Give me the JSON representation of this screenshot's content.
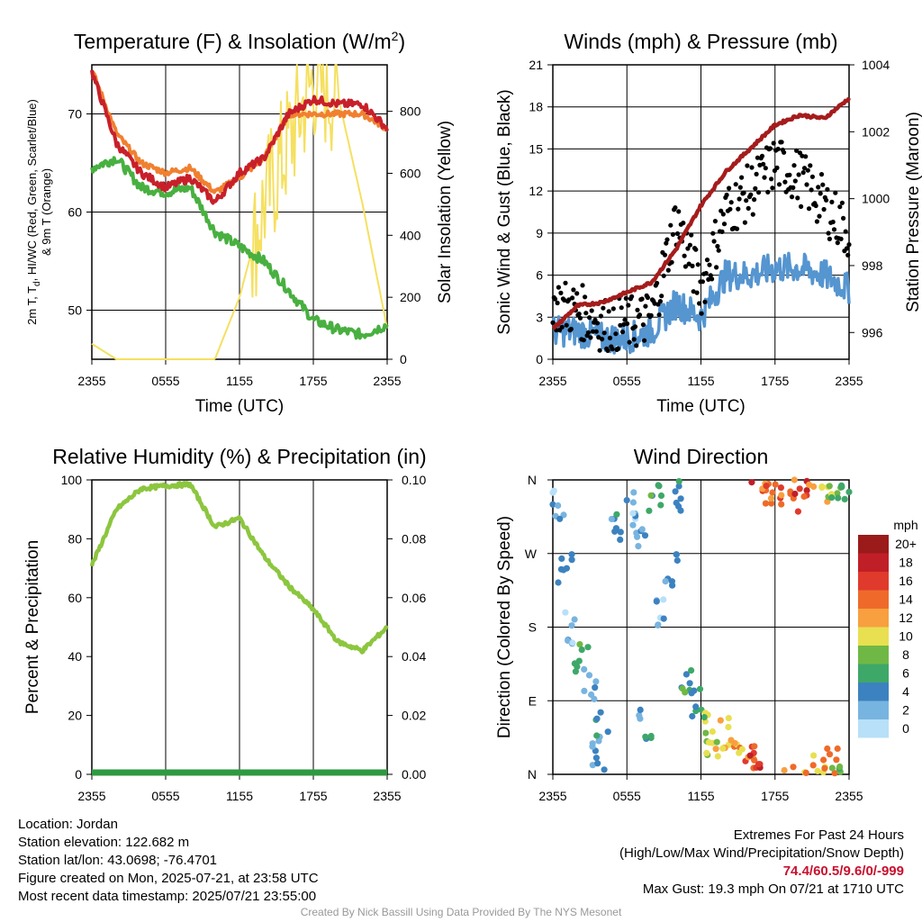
{
  "colors": {
    "red": "#c8202a",
    "green": "#48b040",
    "orange": "#f08030",
    "yellow": "#f5e060",
    "maroon": "#a51c1c",
    "blue": "#5595d0",
    "black": "#000000",
    "rh": "#8cc63f",
    "precip": "#2e9a40"
  },
  "panels": {
    "temp": {
      "title": "Temperature (F) & Insolation (W/m",
      "title_sup": "2",
      "title_end": ")",
      "ylabel_left": "2m T, T",
      "ylabel_left_sub": "d",
      "ylabel_left_rest": ", HI/WC (Red, Green, Scarlet/Blue)",
      "ylabel_left_2": "& 9m T (Orange)",
      "ylabel_right": "Solar Insolation (Yellow)",
      "xlabel": "Time (UTC)"
    },
    "wind": {
      "title": "Winds (mph) & Pressure (mb)",
      "ylabel_left": "Sonic Wind & Gust (Blue, Black)",
      "ylabel_right": "Station Pressure (Maroon)",
      "xlabel": "Time (UTC)"
    },
    "rh": {
      "title": "Relative Humidity (%) & Precipitation (in)",
      "ylabel_left": "Percent & Precipitation"
    },
    "dir": {
      "title": "Wind Direction",
      "ylabel_left": "Direction (Colored By Speed)"
    }
  },
  "legend": {
    "title": "mph",
    "labels": [
      "20+",
      "18",
      "16",
      "14",
      "12",
      "10",
      "8",
      "6",
      "4",
      "2",
      "0"
    ],
    "colors": [
      "#9b1a1a",
      "#c01f28",
      "#e03a2c",
      "#ef6a2a",
      "#f8a040",
      "#e8e050",
      "#70b845",
      "#3ea868",
      "#3c82c0",
      "#78b4e0",
      "#b8e0f8"
    ]
  },
  "info": {
    "location": "Location: Jordan",
    "elevation": "Station elevation: 122.682 m",
    "latlon": "Station lat/lon: 43.0698; -76.4701",
    "created": "Figure created on Mon, 2025-07-21, at 23:58 UTC",
    "recent": "Most recent data timestamp: 2025/07/21 23:55:00"
  },
  "extremes": {
    "title": "Extremes For Past 24 Hours",
    "subtitle": "(High/Low/Max Wind/Precipitation/Snow Depth)",
    "values": "74.4/60.5/9.6/0/-999",
    "gust": "Max Gust: 19.3 mph On 07/21 at 1710 UTC"
  },
  "credit": "Created By Nick Bassill Using Data Provided By The NYS Mesonet",
  "chart_data": [
    {
      "type": "line",
      "title": "Temperature (F) & Insolation (W/m2)",
      "xlabel": "Time (UTC)",
      "x_ticks": [
        "2355",
        "0555",
        "1155",
        "1755",
        "2355"
      ],
      "x": [
        0,
        2,
        4,
        6,
        8,
        10,
        12,
        14,
        16,
        18,
        20,
        22,
        24
      ],
      "ylim": [
        45,
        75
      ],
      "y_ticks": [
        50,
        60,
        70
      ],
      "y2lim": [
        0,
        950
      ],
      "y2_ticks": [
        0,
        200,
        400,
        600,
        800
      ],
      "series": [
        {
          "name": "2m T",
          "axis": "left",
          "values": [
            74.3,
            67,
            64,
            62.5,
            63.5,
            61,
            64,
            65.5,
            70,
            71.5,
            71,
            71,
            68.5
          ]
        },
        {
          "name": "Td",
          "axis": "left",
          "values": [
            64.5,
            65.5,
            62.5,
            62,
            62.5,
            58,
            56.5,
            55,
            52,
            49,
            48,
            47.5,
            48.5
          ]
        },
        {
          "name": "9m T",
          "axis": "left",
          "values": [
            74.5,
            68,
            65,
            64,
            64.5,
            62,
            63.5,
            65.5,
            70,
            70,
            70,
            70,
            68.5
          ]
        },
        {
          "name": "Solar Insolation",
          "axis": "right",
          "values": [
            50,
            0,
            0,
            0,
            0,
            0,
            200,
            500,
            700,
            900,
            850,
            500,
            100
          ]
        }
      ]
    },
    {
      "type": "line",
      "title": "Winds (mph) & Pressure (mb)",
      "xlabel": "Time (UTC)",
      "x_ticks": [
        "2355",
        "0555",
        "1155",
        "1755",
        "2355"
      ],
      "x": [
        0,
        2,
        4,
        6,
        8,
        10,
        12,
        14,
        16,
        18,
        20,
        22,
        24
      ],
      "ylim": [
        0,
        21
      ],
      "y_ticks": [
        0,
        3,
        6,
        9,
        12,
        15,
        18,
        21
      ],
      "y2lim": [
        995.2,
        1004
      ],
      "y2_ticks": [
        996,
        998,
        1000,
        1002,
        1004
      ],
      "series": [
        {
          "name": "Sonic Wind",
          "axis": "left",
          "values": [
            2,
            2,
            1.5,
            1.5,
            2,
            4,
            3,
            6,
            6,
            6.5,
            6.5,
            6,
            5
          ]
        },
        {
          "name": "Gust",
          "axis": "left",
          "values": [
            4,
            3.5,
            2.5,
            2.5,
            3,
            10,
            5,
            10.5,
            12,
            14,
            13,
            11,
            9
          ]
        },
        {
          "name": "Station Pressure",
          "axis": "right",
          "values": [
            996.1,
            996.8,
            996.9,
            997.2,
            997.5,
            998.5,
            999.8,
            1000.8,
            1001.5,
            1002.2,
            1002.5,
            1002.4,
            1003
          ]
        }
      ]
    },
    {
      "type": "line",
      "title": "Relative Humidity (%) & Precipitation (in)",
      "x_ticks": [
        "2355",
        "0555",
        "1155",
        "1755",
        "2355"
      ],
      "x": [
        0,
        2,
        4,
        6,
        8,
        10,
        12,
        14,
        16,
        18,
        20,
        22,
        24
      ],
      "ylim": [
        0,
        100
      ],
      "y_ticks": [
        0,
        20,
        40,
        60,
        80,
        100
      ],
      "y2lim": [
        0,
        0.1
      ],
      "y2_ticks": [
        "0.00",
        "0.02",
        "0.04",
        "0.06",
        "0.08",
        "0.10"
      ],
      "series": [
        {
          "name": "Relative Humidity",
          "axis": "left",
          "values": [
            71,
            90,
            97,
            98,
            98.5,
            84,
            87,
            74,
            64,
            56,
            45,
            42,
            50
          ]
        },
        {
          "name": "Precipitation",
          "axis": "right",
          "values": [
            0,
            0,
            0,
            0,
            0,
            0,
            0,
            0,
            0,
            0,
            0,
            0,
            0
          ]
        }
      ]
    },
    {
      "type": "scatter",
      "title": "Wind Direction",
      "x_ticks": [
        "2355",
        "0555",
        "1155",
        "1755",
        "2355"
      ],
      "y_ticks": [
        "N",
        "E",
        "S",
        "W",
        "N"
      ],
      "ylim": [
        0,
        360
      ],
      "series": [
        {
          "name": "Direction",
          "x": [
            0.3,
            1,
            1.5,
            2.3,
            3,
            3.6,
            4,
            5,
            6.5,
            7,
            7.5,
            8.2,
            9,
            9.5,
            10,
            11,
            11.5,
            12.5,
            13,
            14,
            15,
            16,
            16.5,
            17,
            18,
            19,
            20,
            21,
            22,
            22.5,
            23,
            23.5
          ],
          "y": [
            330,
            250,
            180,
            140,
            110,
            20,
            60,
            300,
            330,
            290,
            60,
            340,
            200,
            250,
            340,
            120,
            90,
            60,
            30,
            50,
            40,
            20,
            10,
            350,
            345,
            355,
            340,
            10,
            350,
            15,
            355,
            350
          ],
          "speed": [
            1,
            2,
            1,
            3,
            1,
            1,
            2,
            2,
            1,
            1,
            2,
            3,
            1,
            2,
            2,
            3,
            2,
            4,
            5,
            6,
            6,
            7,
            8,
            7,
            7,
            6,
            8,
            6,
            5,
            7,
            4,
            3
          ]
        }
      ]
    }
  ]
}
